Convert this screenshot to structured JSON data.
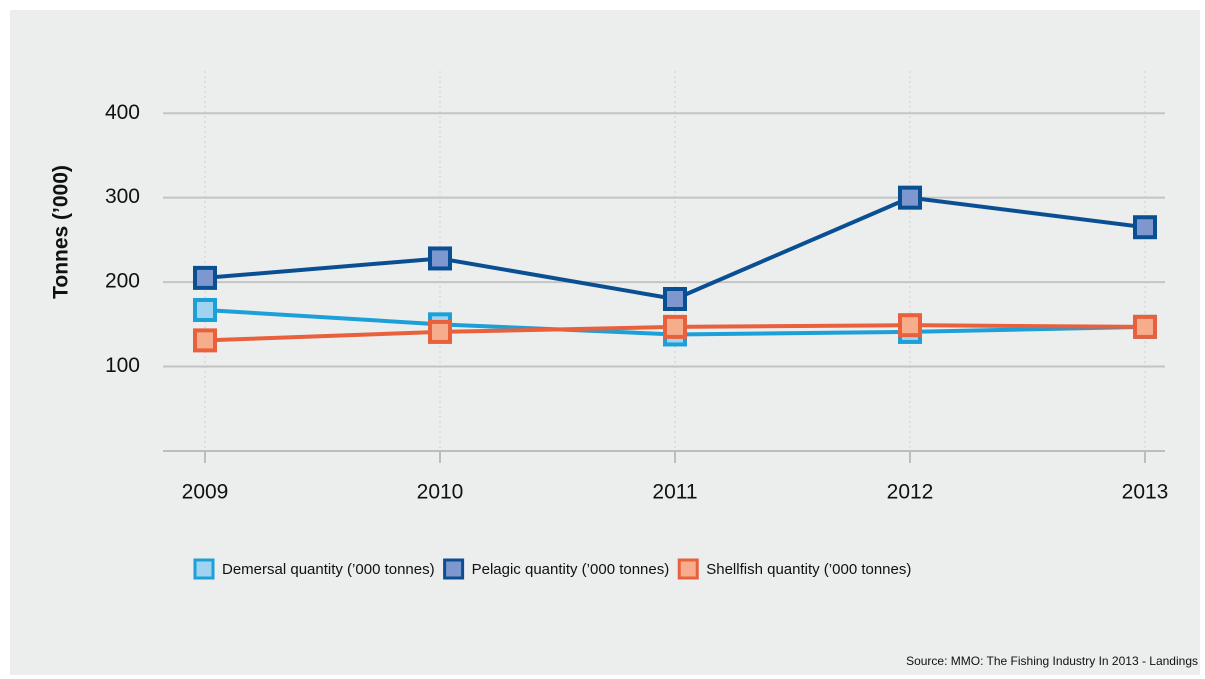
{
  "chart_data": {
    "type": "line",
    "categories": [
      "2009",
      "2010",
      "2011",
      "2012",
      "2013"
    ],
    "series": [
      {
        "name": "Demersal quantity (’000 tonnes)",
        "color": "#1ba0d8",
        "marker_fill": "#9fd3f0",
        "values": [
          167,
          150,
          138,
          141,
          147
        ]
      },
      {
        "name": "Pelagic quantity (’000 tonnes)",
        "color": "#0b4f93",
        "marker_fill": "#7f97cf",
        "values": [
          205,
          228,
          180,
          300,
          265
        ]
      },
      {
        "name": "Shellfish quantity (’000 tonnes)",
        "color": "#e8603c",
        "marker_fill": "#f6ad8c",
        "values": [
          131,
          141,
          147,
          149,
          147
        ]
      }
    ],
    "ylabel": "Tonnes (’000)",
    "ylim": [
      0,
      450
    ],
    "yticks": [
      100,
      200,
      300,
      400
    ],
    "grid": true,
    "source": "Source: MMO: The Fishing Industry In 2013 - Landings"
  }
}
